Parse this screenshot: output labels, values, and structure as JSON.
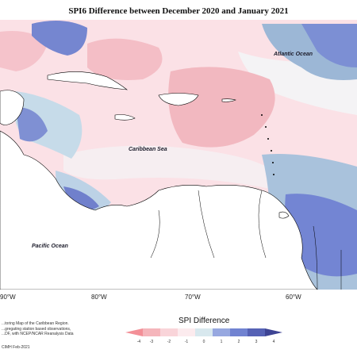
{
  "title": "SPI6 Difference between December 2020 and January 2021",
  "labels": {
    "atlantic": "Atlantic Ocean",
    "caribbean": "Caribbean Sea",
    "pacific": "Pacific Ocean"
  },
  "longitudes": [
    "90°W",
    "80°W",
    "70°W",
    "60°W"
  ],
  "credits": [
    "...toring Map of the Caribbean Region.",
    "...gregating station based observations,",
    "...DF, with NCEP/NCAR Reanalysis Data"
  ],
  "copyright": "CIMH Feb-2021",
  "legend": {
    "title": "SPI Difference",
    "ticks": [
      "-4",
      "-3",
      "-2",
      "-1",
      "0",
      "1",
      "2",
      "3",
      "4"
    ],
    "colors": [
      "#f38f97",
      "#f5b5bb",
      "#f9d4d9",
      "#fcebee",
      "#d8e8ee",
      "#97a8e0",
      "#7183d1",
      "#5662b5",
      "#3e4494"
    ]
  }
}
